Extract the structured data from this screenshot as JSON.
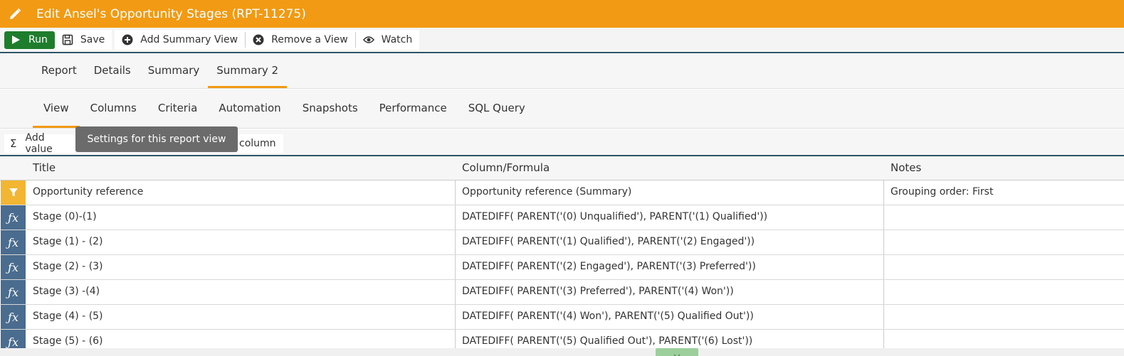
{
  "window": {
    "title": "Edit Ansel's Opportunity Stages (RPT-11275)",
    "title_icon": "pencil-icon",
    "accent_color": "#f29a13"
  },
  "toolbar": {
    "run_label": "Run",
    "save_label": "Save",
    "add_summary_label": "Add Summary View",
    "remove_view_label": "Remove a View",
    "watch_label": "Watch"
  },
  "tabs_primary": [
    {
      "label": "Report"
    },
    {
      "label": "Details"
    },
    {
      "label": "Summary"
    },
    {
      "label": "Summary 2",
      "active": true
    }
  ],
  "tabs_secondary": [
    {
      "label": "View",
      "active": true
    },
    {
      "label": "Columns"
    },
    {
      "label": "Criteria"
    },
    {
      "label": "Automation"
    },
    {
      "label": "Snapshots"
    },
    {
      "label": "Performance"
    },
    {
      "label": "SQL Query"
    }
  ],
  "subbar": {
    "add_value_label": "Add value",
    "column_label": "column",
    "add_value_icon": "sigma-icon"
  },
  "tooltip": {
    "text": "Settings for this report view"
  },
  "grid": {
    "headers": {
      "title": "Title",
      "formula": "Column/Formula",
      "notes": "Notes"
    },
    "rows": [
      {
        "icon": "filter-icon",
        "title": "Opportunity reference",
        "formula": "Opportunity reference (Summary)",
        "notes": "Grouping order: First"
      },
      {
        "icon": "fx-icon",
        "title": "Stage (0)-(1)",
        "formula": "DATEDIFF( PARENT('(0) Unqualified'), PARENT('(1) Qualified'))",
        "notes": ""
      },
      {
        "icon": "fx-icon",
        "title": "Stage (1) - (2)",
        "formula": "DATEDIFF( PARENT('(1) Qualified'), PARENT('(2) Engaged'))",
        "notes": ""
      },
      {
        "icon": "fx-icon",
        "title": "Stage (2) - (3)",
        "formula": "DATEDIFF( PARENT('(2) Engaged'), PARENT('(3) Preferred'))",
        "notes": ""
      },
      {
        "icon": "fx-icon",
        "title": "Stage (3) -(4)",
        "formula": "DATEDIFF( PARENT('(3) Preferred'), PARENT('(4) Won'))",
        "notes": ""
      },
      {
        "icon": "fx-icon",
        "title": "Stage (4) - (5)",
        "formula": "DATEDIFF( PARENT('(4) Won'), PARENT('(5) Qualified Out'))",
        "notes": ""
      },
      {
        "icon": "fx-icon",
        "title": "Stage (5) - (6)",
        "formula": "DATEDIFF( PARENT('(5) Qualified Out'), PARENT('(6) Lost'))",
        "notes": ""
      }
    ],
    "fx_glyph": "ƒx"
  }
}
